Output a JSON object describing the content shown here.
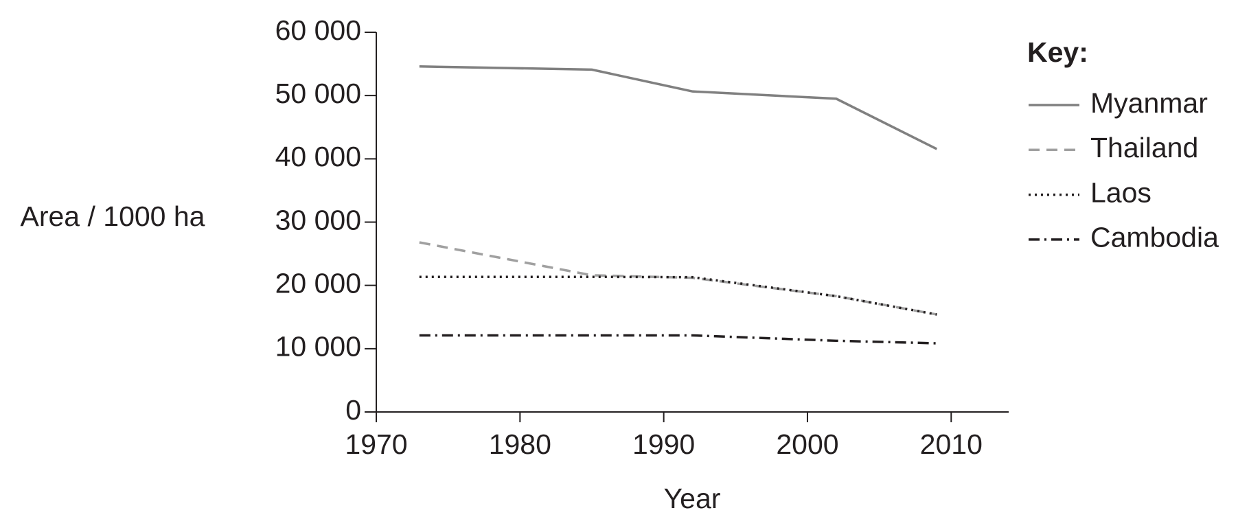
{
  "chart_data": {
    "type": "line",
    "x_label": "Year",
    "y_label": "Area / 1000 ha",
    "legend_title": "Key:",
    "xlim": [
      1970,
      2014
    ],
    "xticks": [
      1970,
      1980,
      1990,
      2000,
      2010
    ],
    "ylim": [
      0,
      60000
    ],
    "yticks": [
      {
        "value": 0,
        "label": "0"
      },
      {
        "value": 10000,
        "label": "10 000"
      },
      {
        "value": 20000,
        "label": "20 000"
      },
      {
        "value": 30000,
        "label": "30 000"
      },
      {
        "value": 40000,
        "label": "40 000"
      },
      {
        "value": 50000,
        "label": "50 000"
      },
      {
        "value": 60000,
        "label": "60 000"
      }
    ],
    "x": [
      1973,
      1985,
      1992,
      2002,
      2009
    ],
    "legend": "right",
    "series": [
      {
        "name": "Myanmar",
        "color": "#808080",
        "dash": "solid",
        "values": [
          54600,
          54100,
          50650,
          49500,
          41550
        ]
      },
      {
        "name": "Thailand",
        "color": "#a0a0a0",
        "dash": "dashed",
        "values": [
          26800,
          21600,
          21200,
          18300,
          15400
        ]
      },
      {
        "name": "Laos",
        "color": "#231f20",
        "dash": "dotted",
        "values": [
          21350,
          21350,
          21300,
          18300,
          15400
        ]
      },
      {
        "name": "Cambodia",
        "color": "#231f20",
        "dash": "dashdot",
        "values": [
          12100,
          12100,
          12100,
          11250,
          10850
        ]
      }
    ]
  }
}
